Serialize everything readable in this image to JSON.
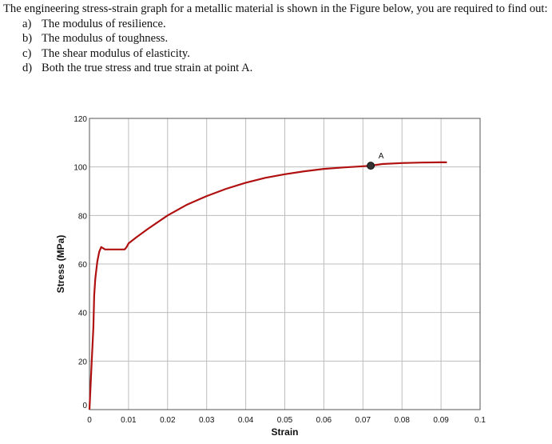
{
  "question": {
    "intro": "The engineering stress-strain graph for a metallic material is shown in the Figure below, you are required to find out:",
    "parts": [
      {
        "label": "a)",
        "text": "The modulus of resilience."
      },
      {
        "label": "b)",
        "text": "The modulus of toughness."
      },
      {
        "label": "c)",
        "text": "The shear modulus of elasticity."
      },
      {
        "label": "d)",
        "text": "Both the true stress and true strain at point A."
      }
    ]
  },
  "chart_data": {
    "type": "line",
    "title": "",
    "xlabel": "Strain",
    "ylabel": "Stress (MPa)",
    "xlim": [
      0,
      0.1
    ],
    "ylim": [
      0,
      120
    ],
    "x_ticks": [
      "0",
      "0.01",
      "0.02",
      "0.03",
      "0.04",
      "0.05",
      "0.06",
      "0.07",
      "0.08",
      "0.09",
      "0.1"
    ],
    "y_ticks": [
      "0",
      "20",
      "40",
      "60",
      "80",
      "100",
      "120"
    ],
    "grid": true,
    "line_color": "#b01010",
    "series": [
      {
        "x": [
          0,
          0.0005,
          0.001,
          0.0012,
          0.0015,
          0.002,
          0.0025,
          0.003,
          0.0035,
          0.004,
          0.0045,
          0.005,
          0.0055,
          0.006,
          0.007,
          0.009,
          0.0095,
          0.01,
          0.012,
          0.015,
          0.02,
          0.025,
          0.03,
          0.035,
          0.04,
          0.045,
          0.05,
          0.055,
          0.06,
          0.065,
          0.07,
          0.072,
          0.075,
          0.08,
          0.085,
          0.09,
          0.0915
        ],
        "y": [
          0,
          17,
          34,
          47,
          54,
          61,
          65,
          67,
          66.5,
          66,
          66,
          66,
          66,
          66,
          66,
          66,
          67,
          68.5,
          71,
          74.5,
          80,
          84.5,
          88,
          91,
          93.5,
          95.5,
          97,
          98.2,
          99.2,
          99.8,
          100.3,
          100.5,
          101.2,
          101.6,
          101.8,
          101.9,
          101.9
        ]
      }
    ],
    "annotations": [
      {
        "label": "A",
        "x": 0.072,
        "y": 100.5
      }
    ]
  }
}
